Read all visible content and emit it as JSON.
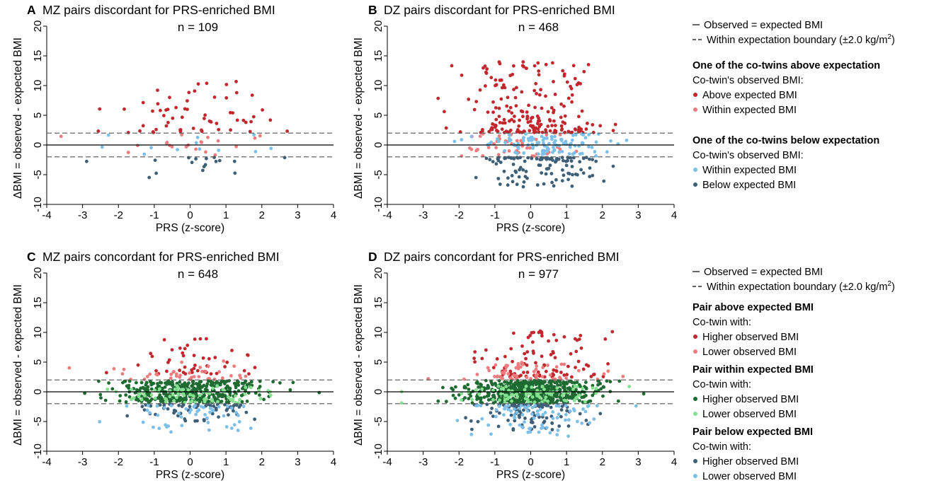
{
  "colors": {
    "dark_red": "#c1272d",
    "light_red": "#ee7b7d",
    "light_blue": "#7cbfe8",
    "dark_blue": "#3e5f78",
    "dark_green": "#1e6b32",
    "light_green": "#85e08f",
    "reference_line": "#000000",
    "boundary_line": "#555555"
  },
  "legends": [
    {
      "observed_label": "Observed = expected BMI",
      "boundary_label_main": "Within expectation boundary (±2.0 kg/m",
      "boundary_label_sup": "2",
      "boundary_label_end": ")",
      "groups": [
        {
          "heading": "One of the co-twins above expectation",
          "subheading": "Co-twin's observed BMI:",
          "items": [
            {
              "label": "Above expected BMI",
              "color": "dark_red"
            },
            {
              "label": "Within expected BMI",
              "color": "light_red"
            }
          ]
        },
        {
          "heading": "One of the co-twins below expectation",
          "subheading": "Co-twin's observed BMI:",
          "items": [
            {
              "label": "Within expected BMI",
              "color": "light_blue"
            },
            {
              "label": "Below expected BMI",
              "color": "dark_blue"
            }
          ]
        }
      ]
    },
    {
      "observed_label": "Observed = expected BMI",
      "boundary_label_main": "Within expectation boundary (±2.0 kg/m",
      "boundary_label_sup": "2",
      "boundary_label_end": ")",
      "groups": [
        {
          "heading": "Pair above expected BMI",
          "subheading": "Co-twin with:",
          "items": [
            {
              "label": "Higher observed BMI",
              "color": "dark_red"
            },
            {
              "label": "Lower observed BMI",
              "color": "light_red"
            }
          ]
        },
        {
          "heading": "Pair within expected BMI",
          "subheading": "Co-twin with:",
          "items": [
            {
              "label": "Higher observed BMI",
              "color": "dark_green"
            },
            {
              "label": "Lower observed BMI",
              "color": "light_green"
            }
          ]
        },
        {
          "heading": "Pair below expected BMI",
          "subheading": "Co-twin with:",
          "items": [
            {
              "label": "Higher observed BMI",
              "color": "dark_blue"
            },
            {
              "label": "Lower observed BMI",
              "color": "light_blue"
            }
          ]
        }
      ]
    }
  ],
  "chart_data": [
    {
      "type": "scatter",
      "panel": "A",
      "title": "MZ pairs discordant for PRS-enriched BMI",
      "annotation": "n = 109",
      "xlabel": "PRS (z-score)",
      "ylabel": "ΔBMI = observed - expected BMI",
      "xlim": [
        -4,
        4
      ],
      "ylim": [
        -10,
        20
      ],
      "xticks": [
        -4,
        -3,
        -2,
        -1,
        0,
        1,
        2,
        3,
        4
      ],
      "yticks": [
        -10,
        -5,
        0,
        5,
        10,
        15,
        20
      ],
      "reference_lines": {
        "solid": 0,
        "dashed": [
          2,
          -2
        ]
      },
      "n": 109,
      "series": [
        {
          "color": "dark_red",
          "x_mean": 0.1,
          "x_sd": 1.1,
          "y_min": 2.1,
          "y_max": 10.7,
          "y_mode": "up",
          "count": 60
        },
        {
          "color": "light_red",
          "x_mean": -0.1,
          "x_sd": 1.05,
          "y_min": -1.9,
          "y_max": 1.9,
          "y_mode": "uniform",
          "count": 20
        },
        {
          "color": "light_blue",
          "x_mean": 0.3,
          "x_sd": 1.1,
          "y_min": -1.9,
          "y_max": 1.9,
          "y_mode": "uniform",
          "count": 12
        },
        {
          "color": "dark_blue",
          "x_mean": 0.4,
          "x_sd": 1.1,
          "y_min": -5.5,
          "y_max": -2.1,
          "y_mode": "down",
          "count": 17
        }
      ]
    },
    {
      "type": "scatter",
      "panel": "B",
      "title": "DZ pairs discordant for PRS-enriched BMI",
      "annotation": "n = 468",
      "xlabel": "PRS (z-score)",
      "ylabel": "ΔBMI = observed - expected BMI",
      "xlim": [
        -4,
        4
      ],
      "ylim": [
        -10,
        20
      ],
      "xticks": [
        -4,
        -3,
        -2,
        -1,
        0,
        1,
        2,
        3,
        4
      ],
      "yticks": [
        -10,
        -5,
        0,
        5,
        10,
        15,
        20
      ],
      "reference_lines": {
        "solid": 0,
        "dashed": [
          2,
          -2
        ]
      },
      "n": 468,
      "series": [
        {
          "color": "dark_red",
          "x_mean": 0.1,
          "x_sd": 0.95,
          "y_min": 2.1,
          "y_max": 14.2,
          "y_mode": "up",
          "count": 205
        },
        {
          "color": "light_red",
          "x_mean": -0.3,
          "x_sd": 0.95,
          "y_min": -1.9,
          "y_max": 1.9,
          "y_mode": "uniform",
          "count": 45
        },
        {
          "color": "light_blue",
          "x_mean": 0.35,
          "x_sd": 0.95,
          "y_min": -1.9,
          "y_max": 1.9,
          "y_mode": "uniform",
          "count": 110
        },
        {
          "color": "dark_blue",
          "x_mean": 0.3,
          "x_sd": 0.85,
          "y_min": -7.1,
          "y_max": -2.1,
          "y_mode": "down",
          "count": 108
        }
      ]
    },
    {
      "type": "scatter",
      "panel": "C",
      "title": "MZ pairs concordant for PRS-enriched BMI",
      "annotation": "n = 648",
      "xlabel": "PRS (z-score)",
      "ylabel": "ΔBMI = observed - expected BMI",
      "xlim": [
        -4,
        4
      ],
      "ylim": [
        -10,
        20
      ],
      "xticks": [
        -4,
        -3,
        -2,
        -1,
        0,
        1,
        2,
        3,
        4
      ],
      "yticks": [
        -10,
        -5,
        0,
        5,
        10,
        15,
        20
      ],
      "reference_lines": {
        "solid": 0,
        "dashed": [
          2,
          -2
        ]
      },
      "n": 648,
      "series": [
        {
          "color": "dark_red",
          "x_mean": 0.1,
          "x_sd": 0.9,
          "y_min": 3.0,
          "y_max": 9.0,
          "y_mode": "up",
          "count": 45
        },
        {
          "color": "light_red",
          "x_mean": 0.0,
          "x_sd": 0.9,
          "y_min": 2.1,
          "y_max": 5.5,
          "y_mode": "up",
          "count": 40
        },
        {
          "color": "dark_green",
          "x_mean": 0.0,
          "x_sd": 0.95,
          "y_min": -1.9,
          "y_max": 1.9,
          "y_mode": "uniform",
          "count": 380
        },
        {
          "color": "light_green",
          "x_mean": 0.0,
          "x_sd": 1.0,
          "y_min": -1.9,
          "y_max": 1.0,
          "y_mode": "uniform",
          "count": 73
        },
        {
          "color": "dark_blue",
          "x_mean": 0.0,
          "x_sd": 0.85,
          "y_min": -5.0,
          "y_max": -2.1,
          "y_mode": "down",
          "count": 60
        },
        {
          "color": "light_blue",
          "x_mean": 0.1,
          "x_sd": 0.95,
          "y_min": -7.0,
          "y_max": -2.3,
          "y_mode": "down",
          "count": 50
        }
      ]
    },
    {
      "type": "scatter",
      "panel": "D",
      "title": "DZ pairs concordant for PRS-enriched BMI",
      "annotation": "n = 977",
      "xlabel": "PRS (z-score)",
      "ylabel": "ΔBMI = observed - expected BMI",
      "xlim": [
        -4,
        4
      ],
      "ylim": [
        -10,
        20
      ],
      "xticks": [
        -4,
        -3,
        -2,
        -1,
        0,
        1,
        2,
        3,
        4
      ],
      "yticks": [
        -10,
        -5,
        0,
        5,
        10,
        15,
        20
      ],
      "reference_lines": {
        "solid": 0,
        "dashed": [
          2,
          -2
        ]
      },
      "n": 977,
      "series": [
        {
          "color": "dark_red",
          "x_mean": 0.0,
          "x_sd": 0.85,
          "y_min": 2.5,
          "y_max": 11.0,
          "y_mode": "up",
          "count": 95
        },
        {
          "color": "light_red",
          "x_mean": 0.0,
          "x_sd": 1.0,
          "y_min": 2.1,
          "y_max": 5.0,
          "y_mode": "up",
          "count": 60
        },
        {
          "color": "dark_green",
          "x_mean": 0.0,
          "x_sd": 0.95,
          "y_min": -1.9,
          "y_max": 1.9,
          "y_mode": "uniform",
          "count": 560
        },
        {
          "color": "light_green",
          "x_mean": 0.0,
          "x_sd": 1.0,
          "y_min": -1.9,
          "y_max": 1.0,
          "y_mode": "uniform",
          "count": 82
        },
        {
          "color": "dark_blue",
          "x_mean": 0.0,
          "x_sd": 0.85,
          "y_min": -6.5,
          "y_max": -2.1,
          "y_mode": "down",
          "count": 100
        },
        {
          "color": "light_blue",
          "x_mean": 0.1,
          "x_sd": 0.9,
          "y_min": -7.7,
          "y_max": -2.3,
          "y_mode": "down",
          "count": 80
        }
      ]
    }
  ]
}
